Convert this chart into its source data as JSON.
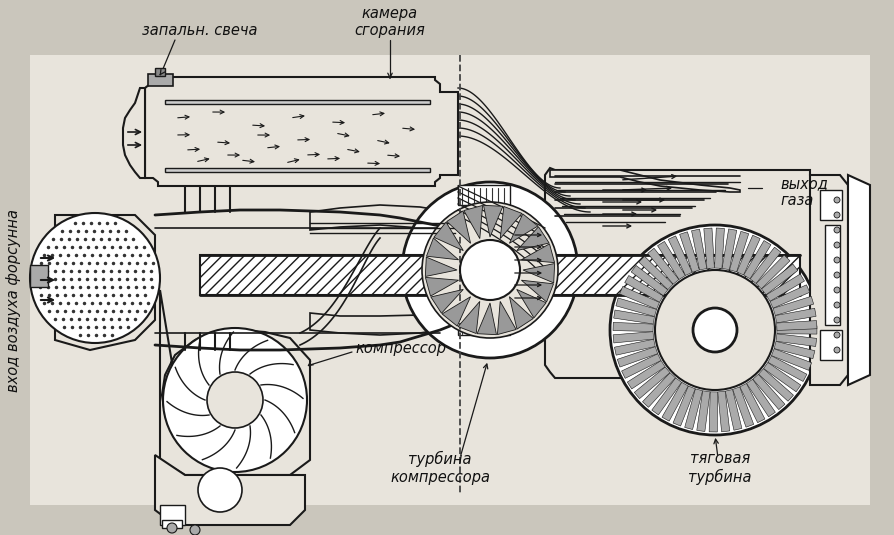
{
  "bg_color": "#cac6bc",
  "paper_color": "#e8e4dc",
  "line_color": "#1a1a1a",
  "labels": {
    "zapalnya_svecha": "запальн. свеча",
    "kamera_sgoraniya": "камера\nсгорания",
    "vkhod_vozdukha_f": "вход воздуха форсунна",
    "vykhod_gaza": "выход\nгаза",
    "kompressor": "компрессор",
    "turbina_kompressora": "турбина\nкомпрессора",
    "tyagovaya_turbina": "тяговая\nтурбина"
  },
  "fig_width": 8.95,
  "fig_height": 5.35,
  "dpi": 100
}
